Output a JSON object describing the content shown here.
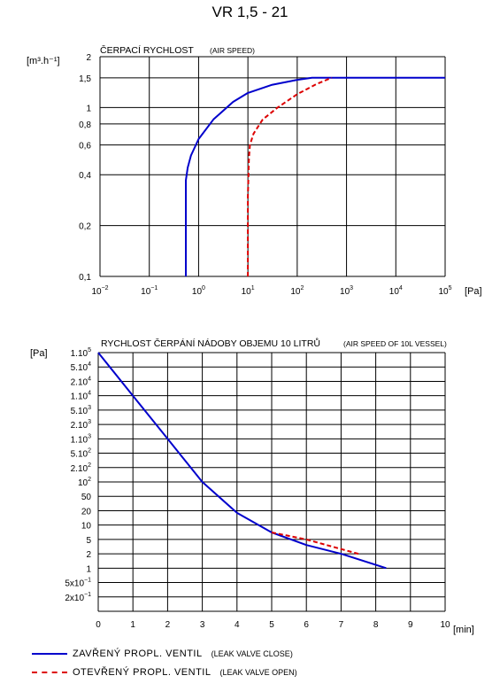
{
  "title": "VR 1,5 - 21",
  "colors": {
    "leak_valve_close": "#0000cc",
    "leak_valve_open": "#dd0000",
    "grid": "#000000"
  },
  "chart_data": [
    {
      "type": "line",
      "title": "ČERPACÍ RYCHLOST",
      "title_en": "(AIR SPEED)",
      "ylabel": "[m³.h⁻¹]",
      "xlabel": "[Pa]",
      "xscale": "log",
      "xlim": [
        0.01,
        100000
      ],
      "ylim": [
        0.1,
        2
      ],
      "x_ticks": [
        0.01,
        0.1,
        1,
        10,
        100,
        1000,
        10000,
        100000
      ],
      "x_tick_labels": [
        {
          "base": "10",
          "exp": "−2"
        },
        {
          "base": "10",
          "exp": "−1"
        },
        {
          "base": "10",
          "exp": "0"
        },
        {
          "base": "10",
          "exp": "1"
        },
        {
          "base": "10",
          "exp": "2"
        },
        {
          "base": "10",
          "exp": "3"
        },
        {
          "base": "10",
          "exp": "4"
        },
        {
          "base": "10",
          "exp": "5"
        }
      ],
      "y_ticks": [
        0.1,
        0.2,
        0.4,
        0.6,
        0.8,
        1,
        1.5,
        2
      ],
      "y_tick_labels": [
        "0,1",
        "0,2",
        "0,4",
        "0,6",
        "0,8",
        "1",
        "1,5",
        "2"
      ],
      "grid": true,
      "series": [
        {
          "key": "close",
          "x": [
            0.55,
            0.55,
            0.6,
            0.7,
            1,
            2,
            5,
            10,
            30,
            100,
            200,
            100000
          ],
          "y": [
            0.1,
            0.37,
            0.44,
            0.52,
            0.65,
            0.85,
            1.08,
            1.22,
            1.36,
            1.46,
            1.5,
            1.5
          ]
        },
        {
          "key": "open",
          "x": [
            10,
            10,
            10.5,
            11,
            13,
            20,
            40,
            100,
            250,
            500
          ],
          "y": [
            0.1,
            0.3,
            0.5,
            0.6,
            0.7,
            0.85,
            1.0,
            1.2,
            1.38,
            1.5
          ]
        }
      ]
    },
    {
      "type": "line",
      "title": "RYCHLOST ČERPÁNÍ NÁDOBY OBJEMU 10 LITRŮ",
      "title_en": "(AIR SPEED OF 10L VESSEL)",
      "ylabel": "[Pa]",
      "xlabel": "[min]",
      "xlim": [
        0,
        10
      ],
      "x_ticks": [
        0,
        1,
        2,
        3,
        4,
        5,
        6,
        7,
        8,
        9,
        10
      ],
      "y_ticks": [
        100000,
        50000,
        20000,
        10000,
        5000,
        2000,
        1000,
        500,
        200,
        100,
        50,
        20,
        10,
        5,
        2,
        1,
        0.5,
        0.2
      ],
      "y_tick_labels": [
        {
          "base": "1.10",
          "exp": "5"
        },
        {
          "base": "5.10",
          "exp": "4"
        },
        {
          "base": "2.10",
          "exp": "4"
        },
        {
          "base": "1.10",
          "exp": "4"
        },
        {
          "base": "5.10",
          "exp": "3"
        },
        {
          "base": "2.10",
          "exp": "3"
        },
        {
          "base": "1.10",
          "exp": "3"
        },
        {
          "base": "5.10",
          "exp": "2"
        },
        {
          "base": "2.10",
          "exp": "2"
        },
        {
          "base": "10",
          "exp": "2"
        },
        {
          "base": "50",
          "exp": ""
        },
        {
          "base": "20",
          "exp": ""
        },
        {
          "base": "10",
          "exp": ""
        },
        {
          "base": "5",
          "exp": ""
        },
        {
          "base": "2",
          "exp": ""
        },
        {
          "base": "1",
          "exp": ""
        },
        {
          "base": "5x10",
          "exp": "−1"
        },
        {
          "base": "2x10",
          "exp": "−1"
        }
      ],
      "grid": true,
      "series": [
        {
          "key": "close",
          "x": [
            0,
            1,
            2,
            3,
            4,
            5,
            6,
            7,
            8.3
          ],
          "y": [
            100000,
            10000,
            1000,
            100,
            18,
            7,
            3.5,
            2,
            1
          ]
        },
        {
          "key": "open",
          "x": [
            5,
            6,
            7.5
          ],
          "y": [
            7,
            5,
            2
          ]
        }
      ]
    }
  ],
  "legend": [
    {
      "key": "close",
      "label": "ZAVŘENÝ  PROPL.  VENTIL",
      "label_en": "(LEAK VALVE CLOSE)",
      "style": "solid"
    },
    {
      "key": "open",
      "label": "OTEVŘENÝ  PROPL.  VENTIL",
      "label_en": "(LEAK VALVE OPEN)",
      "style": "dashed"
    }
  ]
}
